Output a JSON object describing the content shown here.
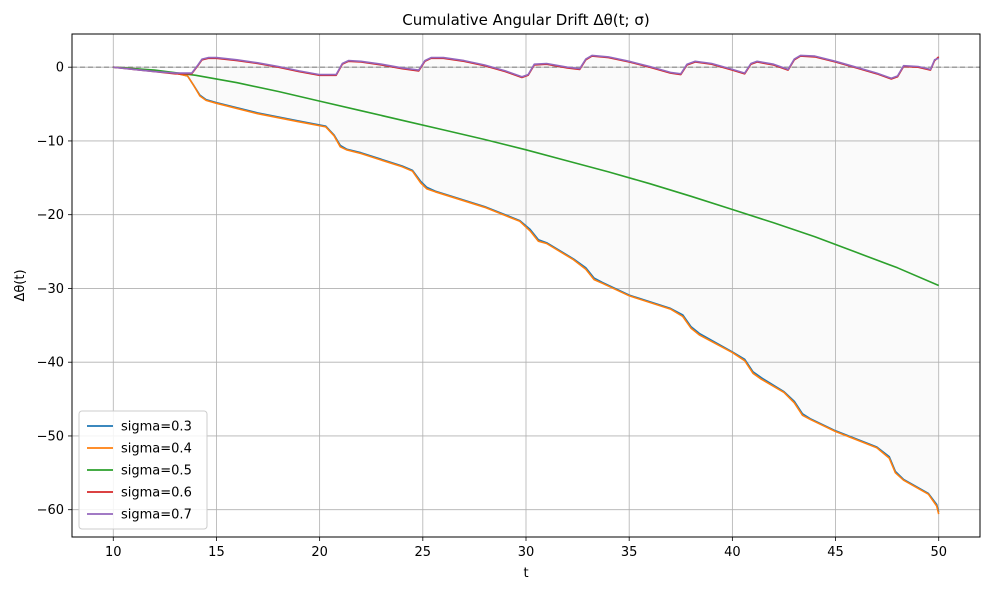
{
  "chart_data": {
    "type": "line",
    "title": "Cumulative Angular Drift Δθ(t; σ)",
    "xlabel": "t",
    "ylabel": "Δθ(t)",
    "xlim": [
      8,
      52
    ],
    "ylim": [
      -63.7,
      4.5
    ],
    "xticks": [
      10,
      15,
      20,
      25,
      30,
      35,
      40,
      45,
      50
    ],
    "yticks": [
      0,
      -10,
      -20,
      -30,
      -40,
      -50,
      -60
    ],
    "xtick_labels": [
      "10",
      "15",
      "20",
      "25",
      "30",
      "35",
      "40",
      "45",
      "50"
    ],
    "ytick_labels": [
      "0",
      "−10",
      "−20",
      "−30",
      "−40",
      "−50",
      "−60"
    ],
    "grid": true,
    "legend_position": "lower-left",
    "reference_line": {
      "y": 0,
      "style": "dashed",
      "color": "#888888"
    },
    "series": [
      {
        "name": "sigma=0.3",
        "color": "#1f77b4",
        "x": [
          10,
          11,
          12,
          13,
          13.6,
          13.9,
          14.2,
          14.5,
          15,
          17,
          19,
          20.3,
          20.7,
          21,
          21.3,
          22,
          24,
          24.5,
          24.9,
          25.2,
          25.6,
          28,
          29.7,
          30.2,
          30.6,
          31,
          32.3,
          32.9,
          33.3,
          33.7,
          35,
          37,
          37.6,
          38,
          38.4,
          40,
          40.6,
          41,
          41.4,
          42.5,
          43,
          43.4,
          43.8,
          45,
          47,
          47.6,
          47.9,
          48.3,
          49.5,
          49.9,
          50
        ],
        "y": [
          0,
          -0.2,
          -0.5,
          -0.8,
          -1.2,
          -2.5,
          -3.8,
          -4.4,
          -4.8,
          -6.2,
          -7.3,
          -8,
          -9.2,
          -10.6,
          -11.1,
          -11.6,
          -13.4,
          -14,
          -15.5,
          -16.3,
          -16.8,
          -18.9,
          -20.8,
          -22,
          -23.4,
          -23.8,
          -26,
          -27.2,
          -28.6,
          -29.2,
          -30.9,
          -32.7,
          -33.6,
          -35.2,
          -36.1,
          -38.6,
          -39.6,
          -41.3,
          -42.1,
          -44,
          -45.3,
          -47,
          -47.7,
          -49.3,
          -51.5,
          -52.8,
          -54.8,
          -55.9,
          -57.8,
          -59.3,
          -60.3
        ]
      },
      {
        "name": "sigma=0.4",
        "color": "#ff7f0e",
        "x": [
          10,
          11,
          12,
          13,
          13.6,
          13.9,
          14.2,
          14.5,
          15,
          17,
          19,
          20.3,
          20.7,
          21,
          21.3,
          22,
          24,
          24.5,
          24.9,
          25.2,
          25.6,
          28,
          29.7,
          30.2,
          30.6,
          31,
          32.3,
          32.9,
          33.3,
          33.7,
          35,
          37,
          37.6,
          38,
          38.4,
          40,
          40.6,
          41,
          41.4,
          42.5,
          43,
          43.4,
          43.8,
          45,
          47,
          47.6,
          47.9,
          48.3,
          49.5,
          49.9,
          50
        ],
        "y": [
          0,
          -0.2,
          -0.5,
          -0.8,
          -1.2,
          -2.5,
          -3.9,
          -4.5,
          -4.9,
          -6.3,
          -7.4,
          -8.1,
          -9.3,
          -10.8,
          -11.2,
          -11.7,
          -13.5,
          -14.1,
          -15.7,
          -16.5,
          -16.9,
          -19,
          -20.9,
          -22.2,
          -23.6,
          -23.9,
          -26.1,
          -27.4,
          -28.8,
          -29.3,
          -31,
          -32.8,
          -33.8,
          -35.4,
          -36.3,
          -38.7,
          -39.8,
          -41.5,
          -42.3,
          -44.1,
          -45.5,
          -47.2,
          -47.8,
          -49.4,
          -51.6,
          -53,
          -55,
          -56,
          -57.9,
          -59.5,
          -60.6
        ]
      },
      {
        "name": "sigma=0.5",
        "color": "#2ca02c",
        "x": [
          10,
          12,
          14,
          16,
          18,
          20,
          22,
          24,
          26,
          28,
          30,
          32,
          34,
          36,
          38,
          40,
          42,
          44,
          46,
          48,
          50
        ],
        "y": [
          0,
          -0.4,
          -1.1,
          -2.1,
          -3.3,
          -4.6,
          -5.9,
          -7.2,
          -8.5,
          -9.8,
          -11.2,
          -12.7,
          -14.2,
          -15.8,
          -17.5,
          -19.3,
          -21.1,
          -23,
          -25.1,
          -27.2,
          -29.6
        ]
      },
      {
        "name": "sigma=0.6",
        "color": "#d62728",
        "x": [
          10,
          11,
          12,
          13,
          13.8,
          14.1,
          14.3,
          14.6,
          15,
          16,
          17,
          18,
          19,
          20,
          20.8,
          21.1,
          21.4,
          22,
          23,
          24,
          24.8,
          25.1,
          25.4,
          26,
          27,
          28,
          29,
          29.8,
          30.1,
          30.4,
          31,
          32,
          32.6,
          32.9,
          33.2,
          34,
          35,
          36,
          37,
          37.5,
          37.8,
          38.2,
          39,
          40,
          40.6,
          40.9,
          41.2,
          42,
          42.7,
          43,
          43.3,
          44,
          45,
          46,
          47,
          47.7,
          48,
          48.3,
          49,
          49.6,
          49.8,
          50
        ],
        "y": [
          0,
          -0.3,
          -0.6,
          -0.9,
          -0.9,
          0.2,
          1,
          1.2,
          1.2,
          0.9,
          0.5,
          0,
          -0.6,
          -1.1,
          -1.1,
          0.4,
          0.8,
          0.7,
          0.3,
          -0.2,
          -0.5,
          0.8,
          1.2,
          1.2,
          0.8,
          0.2,
          -0.6,
          -1.4,
          -1.1,
          0.3,
          0.4,
          -0.1,
          -0.3,
          1,
          1.5,
          1.3,
          0.7,
          0,
          -0.8,
          -1,
          0.3,
          0.7,
          0.4,
          -0.4,
          -0.9,
          0.4,
          0.7,
          0.3,
          -0.4,
          1,
          1.5,
          1.4,
          0.7,
          -0.1,
          -0.9,
          -1.6,
          -1.3,
          0.1,
          0,
          -0.4,
          0.9,
          1.4
        ]
      },
      {
        "name": "sigma=0.7",
        "color": "#9467bd",
        "x": [
          10,
          11,
          12,
          13,
          13.8,
          14.1,
          14.3,
          14.6,
          15,
          16,
          17,
          18,
          19,
          20,
          20.8,
          21.1,
          21.4,
          22,
          23,
          24,
          24.8,
          25.1,
          25.4,
          26,
          27,
          28,
          29,
          29.8,
          30.1,
          30.4,
          31,
          32,
          32.6,
          32.9,
          33.2,
          34,
          35,
          36,
          37,
          37.5,
          37.8,
          38.2,
          39,
          40,
          40.6,
          40.9,
          41.2,
          42,
          42.7,
          43,
          43.3,
          44,
          45,
          46,
          47,
          47.7,
          48,
          48.3,
          49,
          49.6,
          49.8,
          50
        ],
        "y": [
          0,
          -0.3,
          -0.6,
          -0.8,
          -0.8,
          0.3,
          1.1,
          1.3,
          1.3,
          1,
          0.6,
          0.1,
          -0.5,
          -1,
          -1,
          0.5,
          0.9,
          0.8,
          0.4,
          -0.1,
          -0.4,
          0.9,
          1.3,
          1.3,
          0.9,
          0.3,
          -0.5,
          -1.3,
          -1,
          0.4,
          0.5,
          0,
          -0.2,
          1.1,
          1.6,
          1.4,
          0.8,
          0.1,
          -0.7,
          -0.9,
          0.4,
          0.8,
          0.5,
          -0.3,
          -0.8,
          0.5,
          0.8,
          0.4,
          -0.3,
          1.1,
          1.6,
          1.5,
          0.8,
          0,
          -0.8,
          -1.5,
          -1.2,
          0.2,
          0.1,
          -0.3,
          1,
          1.2
        ]
      }
    ]
  }
}
